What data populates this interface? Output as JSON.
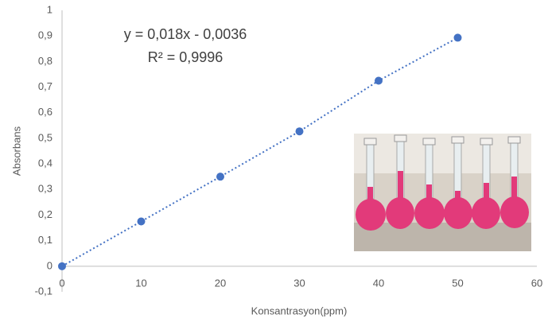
{
  "chart_data": {
    "type": "scatter",
    "title": null,
    "annotations": [
      "y = 0,018x - 0,0036",
      "R² = 0,9996"
    ],
    "x_label": "Konsantrasyon(ppm)",
    "y_label": "Absorbans",
    "x": [
      0,
      10,
      20,
      30,
      40,
      50
    ],
    "series": [
      {
        "name": "Absorbans",
        "color": "#4472c4",
        "values": [
          0,
          0.175,
          0.35,
          0.527,
          0.725,
          0.893
        ]
      }
    ],
    "trendline": true,
    "xlim": [
      0,
      60
    ],
    "xticks": [
      0,
      10,
      20,
      30,
      40,
      50,
      60
    ],
    "ylim": [
      -0.1,
      1
    ],
    "yticks": [
      {
        "value": -0.1,
        "label": "-0,1"
      },
      0,
      {
        "value": 0.1,
        "label": "0,1"
      },
      {
        "value": 0.2,
        "label": "0,2"
      },
      {
        "value": 0.3,
        "label": "0,3"
      },
      {
        "value": 0.4,
        "label": "0,4"
      },
      {
        "value": 0.5,
        "label": "0,5"
      },
      {
        "value": 0.6,
        "label": "0,6"
      },
      {
        "value": 0.7,
        "label": "0,7"
      },
      {
        "value": 0.8,
        "label": "0,8"
      },
      {
        "value": 0.9,
        "label": "0,9"
      },
      1
    ],
    "grid": false
  }
}
